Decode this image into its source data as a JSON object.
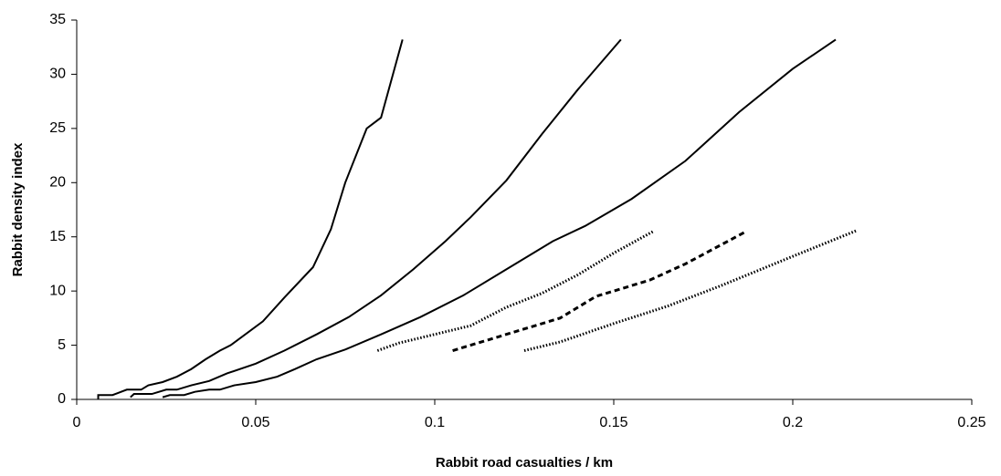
{
  "chart_data": {
    "type": "line",
    "xlabel": "Rabbit road casualties / km",
    "ylabel": "Rabbit density index",
    "xlim": [
      0,
      0.25
    ],
    "xticks": [
      0,
      0.05,
      0.1,
      0.15,
      0.2,
      0.25
    ],
    "ylim": [
      0,
      35
    ],
    "yticks": [
      0,
      5,
      10,
      15,
      20,
      25,
      30,
      35
    ],
    "grid": false,
    "series": [
      {
        "color": "#000000",
        "dash": "solid",
        "x": [
          0.006,
          0.006,
          0.01,
          0.014,
          0.018,
          0.02,
          0.024,
          0.028,
          0.032,
          0.036,
          0.04,
          0.043,
          0.052,
          0.058,
          0.066,
          0.071,
          0.075,
          0.081,
          0.085,
          0.091
        ],
        "values": [
          0,
          0.4,
          0.4,
          0.9,
          0.9,
          1.3,
          1.6,
          2.1,
          2.8,
          3.7,
          4.5,
          5,
          7.2,
          9.4,
          12.2,
          15.7,
          20,
          25,
          26,
          33.2
        ]
      },
      {
        "color": "#000000",
        "dash": "solid",
        "x": [
          0.015,
          0.016,
          0.021,
          0.025,
          0.028,
          0.032,
          0.037,
          0.042,
          0.05,
          0.058,
          0.067,
          0.076,
          0.085,
          0.094,
          0.103,
          0.11,
          0.12,
          0.13,
          0.14,
          0.152
        ],
        "values": [
          0.2,
          0.5,
          0.5,
          0.9,
          0.9,
          1.3,
          1.7,
          2.4,
          3.3,
          4.5,
          6,
          7.6,
          9.6,
          12,
          14.6,
          16.8,
          20.2,
          24.5,
          28.6,
          33.2
        ]
      },
      {
        "color": "#000000",
        "dash": "solid",
        "x": [
          0.024,
          0.026,
          0.03,
          0.033,
          0.037,
          0.04,
          0.044,
          0.05,
          0.056,
          0.061,
          0.067,
          0.075,
          0.085,
          0.096,
          0.108,
          0.12,
          0.133,
          0.142,
          0.155,
          0.17,
          0.185,
          0.2,
          0.212
        ],
        "values": [
          0.2,
          0.4,
          0.4,
          0.7,
          0.9,
          0.9,
          1.3,
          1.6,
          2.1,
          2.8,
          3.7,
          4.6,
          6,
          7.6,
          9.6,
          12,
          14.6,
          16,
          18.5,
          22,
          26.5,
          30.5,
          33.2
        ]
      },
      {
        "color": "#000000",
        "dash": "dotted",
        "x": [
          0.084,
          0.09,
          0.1,
          0.11,
          0.12,
          0.13,
          0.14,
          0.15,
          0.161
        ],
        "values": [
          4.5,
          5.2,
          6,
          6.8,
          8.5,
          9.8,
          11.5,
          13.5,
          15.5
        ]
      },
      {
        "color": "#000000",
        "dash": "dashed",
        "x": [
          0.105,
          0.115,
          0.125,
          0.135,
          0.145,
          0.16,
          0.17,
          0.187
        ],
        "values": [
          4.5,
          5.5,
          6.5,
          7.5,
          9.5,
          11,
          12.5,
          15.5
        ]
      },
      {
        "color": "#000000",
        "dash": "dotted",
        "x": [
          0.125,
          0.135,
          0.15,
          0.165,
          0.18,
          0.2,
          0.218
        ],
        "values": [
          4.5,
          5.3,
          7,
          8.6,
          10.5,
          13.2,
          15.6
        ]
      }
    ]
  }
}
